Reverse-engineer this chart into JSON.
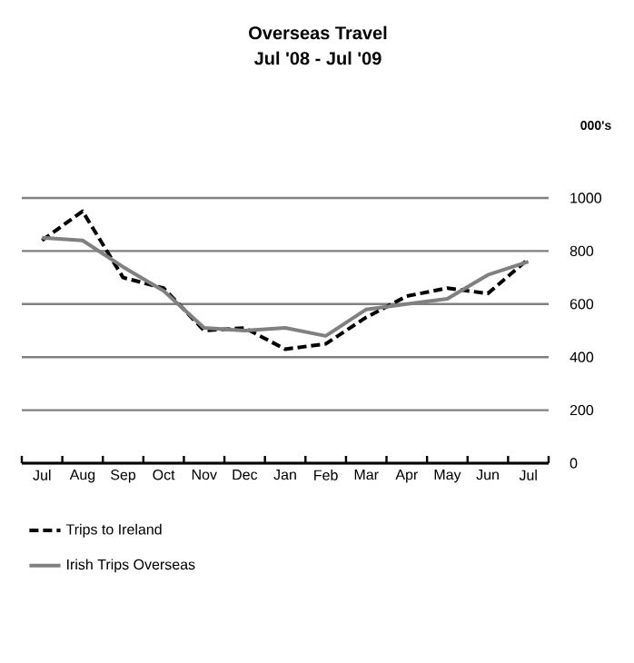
{
  "chart_data": {
    "type": "line",
    "title": "Overseas Travel",
    "subtitle": "Jul '08 - Jul '09",
    "ylabel": "000's",
    "categories": [
      "Jul",
      "Aug",
      "Sep",
      "Oct",
      "Nov",
      "Dec",
      "Jan",
      "Feb",
      "Mar",
      "Apr",
      "May",
      "Jun",
      "Jul"
    ],
    "series": [
      {
        "name": "Trips to Ireland",
        "color": "#000000",
        "line_style": "dashed",
        "values": [
          840,
          950,
          700,
          660,
          500,
          510,
          430,
          450,
          550,
          630,
          660,
          640,
          770
        ]
      },
      {
        "name": "Irish Trips Overseas",
        "color": "#808080",
        "line_style": "solid",
        "values": [
          850,
          840,
          740,
          650,
          510,
          500,
          510,
          480,
          580,
          600,
          620,
          710,
          760
        ]
      }
    ],
    "ylim": [
      0,
      1000
    ],
    "yticks": [
      0,
      200,
      400,
      600,
      800,
      1000
    ],
    "grid": "y",
    "legend": "bottom",
    "marker": "none"
  }
}
